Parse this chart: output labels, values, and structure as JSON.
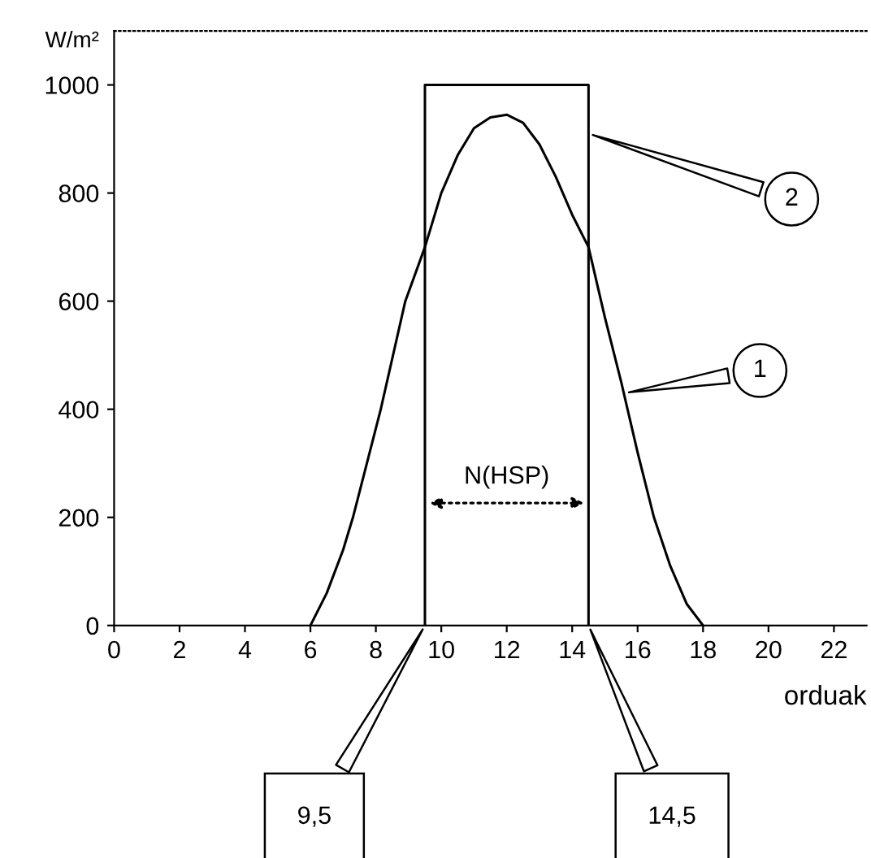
{
  "chart_data": {
    "type": "line",
    "ylabel": "W/m²",
    "xlabel": "orduak",
    "xlim": [
      0,
      23
    ],
    "xticks": [
      0,
      2,
      4,
      6,
      8,
      10,
      12,
      14,
      16,
      18,
      20,
      22
    ],
    "ylim": [
      0,
      1100
    ],
    "yticks": [
      0,
      200,
      400,
      600,
      800,
      1000
    ],
    "grid": false,
    "marker": "none",
    "line_style": "solid",
    "series": [
      {
        "color": "#000000",
        "x": [
          6,
          6.5,
          7,
          7.3,
          8.15,
          8.9,
          9.5,
          10,
          10.5,
          11,
          11.5,
          12,
          12.5,
          13,
          13.5,
          14,
          14.5,
          15,
          15.5,
          16,
          16.5,
          17,
          17.5,
          18
        ],
        "values": [
          0,
          60,
          140,
          200,
          400,
          600,
          700,
          800,
          870,
          920,
          940,
          945,
          930,
          890,
          830,
          760,
          700,
          570,
          450,
          320,
          200,
          110,
          40,
          0
        ]
      },
      {
        "color": "#000000",
        "x": [
          9.5,
          9.5,
          14.5,
          14.5
        ],
        "values": [
          0,
          1000,
          1000,
          0
        ]
      }
    ],
    "annotations": [
      {
        "text": "1",
        "x": 15.6,
        "y": 430
      },
      {
        "text": "2",
        "x": 14.5,
        "y": 910
      },
      "N(HSP)",
      "9,5",
      "14,5"
    ]
  }
}
